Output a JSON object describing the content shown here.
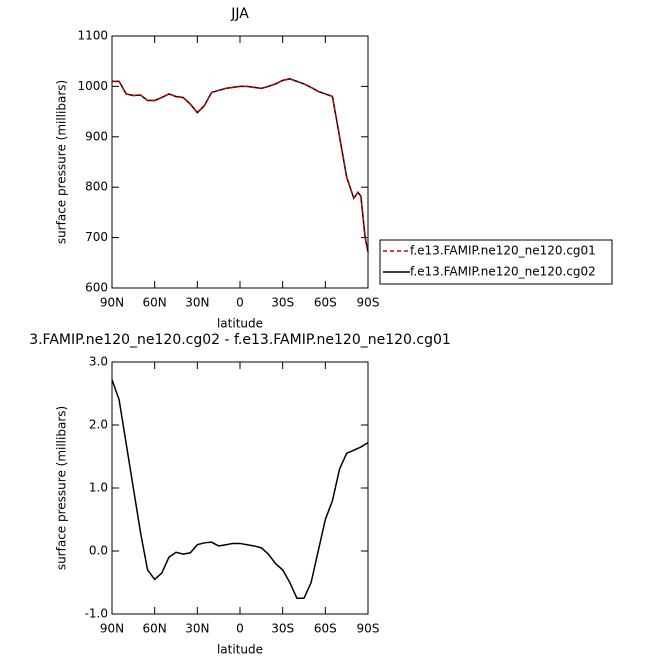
{
  "chart_data": [
    {
      "type": "line",
      "title": "JJA",
      "xlabel": "latitude",
      "ylabel": "surface pressure (millibars)",
      "x": [
        90,
        85,
        80,
        75,
        70,
        65,
        60,
        55,
        50,
        45,
        40,
        35,
        30,
        25,
        20,
        15,
        10,
        5,
        0,
        -5,
        -10,
        -15,
        -20,
        -25,
        -30,
        -35,
        -40,
        -45,
        -50,
        -55,
        -60,
        -65,
        -70,
        -75,
        -80,
        -83,
        -85,
        -88,
        -90
      ],
      "xlim": [
        90,
        -90
      ],
      "xticks": [
        {
          "value": 90,
          "label": "90N"
        },
        {
          "value": 60,
          "label": "60N"
        },
        {
          "value": 30,
          "label": "30N"
        },
        0,
        {
          "value": -30,
          "label": "30S"
        },
        {
          "value": -60,
          "label": "60S"
        },
        {
          "value": -90,
          "label": "90S"
        }
      ],
      "ylim": [
        600,
        1100
      ],
      "yticks": [
        600,
        700,
        800,
        900,
        1000,
        1100
      ],
      "legend": "right",
      "series": [
        {
          "name": "f.e13.FAMIP.ne120_ne120.cg02",
          "color": "#000000",
          "style": "solid",
          "values": [
            1010,
            1010,
            985,
            982,
            983,
            972,
            972,
            978,
            985,
            980,
            978,
            965,
            948,
            962,
            988,
            992,
            996,
            998,
            1000,
            1000,
            998,
            996,
            1000,
            1005,
            1012,
            1015,
            1010,
            1005,
            998,
            990,
            985,
            980,
            900,
            820,
            778,
            790,
            782,
            700,
            672
          ]
        },
        {
          "name": "f.e13.FAMIP.ne120_ne120.cg01",
          "color": "#cc0000",
          "style": "dashed",
          "values": [
            1010,
            1010,
            985,
            982,
            983,
            972,
            972,
            978,
            985,
            980,
            978,
            965,
            948,
            962,
            988,
            992,
            996,
            998,
            1000,
            1000,
            998,
            996,
            1000,
            1005,
            1012,
            1015,
            1010,
            1005,
            998,
            990,
            985,
            980,
            900,
            820,
            778,
            790,
            782,
            700,
            672
          ]
        }
      ]
    },
    {
      "type": "line",
      "title": "3.FAMIP.ne120_ne120.cg02 - f.e13.FAMIP.ne120_ne120.cg01",
      "xlabel": "latitude",
      "ylabel": "surface pressure (millibars)",
      "x": [
        90,
        85,
        80,
        75,
        70,
        65,
        60,
        55,
        50,
        45,
        40,
        35,
        30,
        25,
        20,
        15,
        10,
        5,
        0,
        -5,
        -10,
        -15,
        -20,
        -25,
        -30,
        -35,
        -40,
        -45,
        -50,
        -55,
        -60,
        -65,
        -70,
        -75,
        -80,
        -85,
        -90
      ],
      "xlim": [
        90,
        -90
      ],
      "xticks": [
        {
          "value": 90,
          "label": "90N"
        },
        {
          "value": 60,
          "label": "60N"
        },
        {
          "value": 30,
          "label": "30N"
        },
        0,
        {
          "value": -30,
          "label": "30S"
        },
        {
          "value": -60,
          "label": "60S"
        },
        {
          "value": -90,
          "label": "90S"
        }
      ],
      "ylim": [
        -1,
        3
      ],
      "yticks": [
        {
          "value": -1,
          "label": "-1.0"
        },
        {
          "value": 0,
          "label": "0.0"
        },
        {
          "value": 1,
          "label": "1.0"
        },
        {
          "value": 2,
          "label": "2.0"
        },
        {
          "value": 3,
          "label": "3.0"
        }
      ],
      "color": "#000000",
      "values": [
        2.72,
        2.4,
        1.7,
        1.0,
        0.3,
        -0.3,
        -0.45,
        -0.35,
        -0.1,
        -0.02,
        -0.05,
        -0.03,
        0.1,
        0.13,
        0.14,
        0.08,
        0.1,
        0.12,
        0.12,
        0.1,
        0.08,
        0.05,
        -0.05,
        -0.2,
        -0.3,
        -0.5,
        -0.75,
        -0.75,
        -0.5,
        0.0,
        0.5,
        0.8,
        1.3,
        1.55,
        1.6,
        1.65,
        1.72
      ]
    }
  ]
}
